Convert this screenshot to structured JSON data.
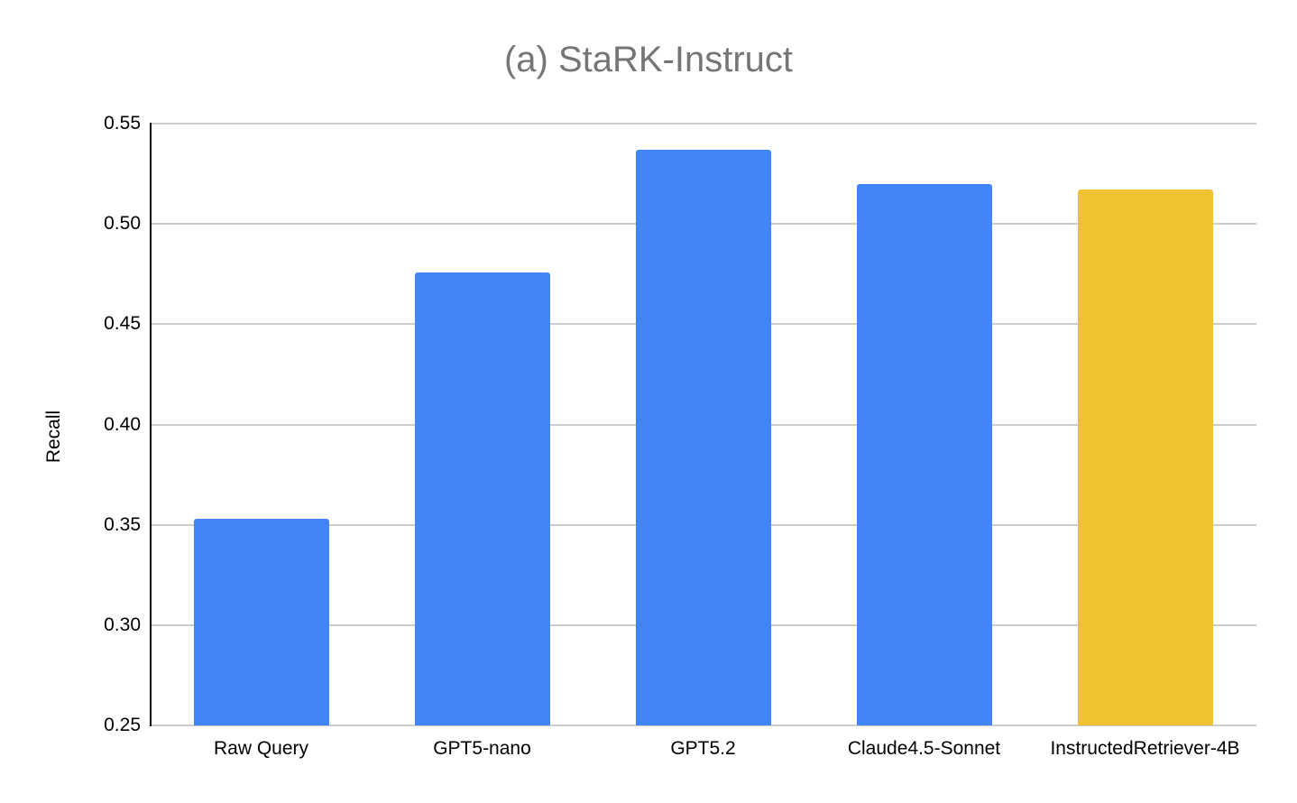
{
  "chart_data": {
    "type": "bar",
    "title": "(a) StaRK-Instruct",
    "xlabel": "",
    "ylabel": "Recall",
    "categories": [
      "Raw Query",
      "GPT5-nano",
      "GPT5.2",
      "Claude4.5-Sonnet",
      "InstructedRetriever-4B"
    ],
    "values": [
      0.353,
      0.476,
      0.537,
      0.52,
      0.517
    ],
    "colors": [
      "#4285f4",
      "#4285f4",
      "#4285f4",
      "#4285f4",
      "#f0c232"
    ],
    "ylim": [
      0.25,
      0.55
    ],
    "yticks": [
      "0.25",
      "0.30",
      "0.35",
      "0.40",
      "0.45",
      "0.50",
      "0.55"
    ],
    "grid": true,
    "legend": "none"
  }
}
